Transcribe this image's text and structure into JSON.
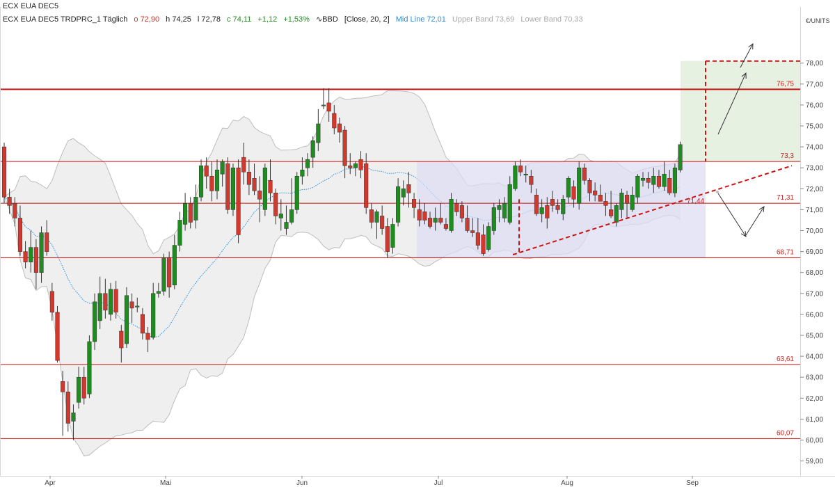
{
  "header": {
    "title": "ECX EUA DEC5",
    "symbol": "ECX EUA DEC5 TRDPRC_1 Täglich",
    "open": "o 72,90",
    "high": "h 74,25",
    "low": "l 72,78",
    "close": "c 74,11",
    "change": "+1,12",
    "change_pct": "+1,53%",
    "indicator": "BBD",
    "indicator_params": "[Close, 20, 2]",
    "mid_line": "Mid Line 72,01",
    "upper_band": "Upper Band 73,69",
    "lower_band": "Lower Band 70,33"
  },
  "colors": {
    "up": "#1e8c1e",
    "down": "#d03a2e",
    "level": "#cc1111",
    "mid_line": "#2a8fd8",
    "band_fill": "#efefef",
    "range_box": "#dcdcf4",
    "target_box": "#e3efdc"
  },
  "chart_data": {
    "type": "candlestick",
    "unit_label": "€/UNITS",
    "ylim": [
      58.6,
      78.6
    ],
    "y_ticks": [
      "59,00",
      "60,00",
      "61,00",
      "62,00",
      "63,00",
      "64,00",
      "65,00",
      "66,00",
      "67,00",
      "68,00",
      "69,00",
      "70,00",
      "71,00",
      "72,00",
      "73,00",
      "74,00",
      "75,00",
      "76,00",
      "77,00",
      "78,00"
    ],
    "x_ticks": [
      "Apr",
      "Mai",
      "Jun",
      "Jul",
      "Aug",
      "Sep"
    ],
    "levels": [
      {
        "value": 76.75,
        "label": "76,75"
      },
      {
        "value": 73.3,
        "label": "73,3"
      },
      {
        "value": 71.31,
        "label": "71,31"
      },
      {
        "value": 68.71,
        "label": "68,71"
      },
      {
        "value": 63.61,
        "label": "63,61"
      },
      {
        "value": 60.07,
        "label": "60,07"
      }
    ],
    "trendline_label": "71,44",
    "candles": [
      {
        "o": 74.0,
        "h": 74.2,
        "l": 71.3,
        "c": 71.6
      },
      {
        "o": 71.6,
        "h": 72.0,
        "l": 70.8,
        "c": 71.2
      },
      {
        "o": 71.3,
        "h": 71.6,
        "l": 70.2,
        "c": 70.6
      },
      {
        "o": 70.6,
        "h": 71.2,
        "l": 68.8,
        "c": 69.0
      },
      {
        "o": 69.0,
        "h": 69.5,
        "l": 68.2,
        "c": 68.5
      },
      {
        "o": 68.5,
        "h": 70.0,
        "l": 68.0,
        "c": 69.2
      },
      {
        "o": 69.2,
        "h": 69.6,
        "l": 67.2,
        "c": 68.0
      },
      {
        "o": 68.0,
        "h": 70.2,
        "l": 67.5,
        "c": 69.9
      },
      {
        "o": 69.9,
        "h": 70.5,
        "l": 68.8,
        "c": 69.0
      },
      {
        "o": 67.1,
        "h": 67.5,
        "l": 65.7,
        "c": 66.1
      },
      {
        "o": 66.1,
        "h": 66.4,
        "l": 63.7,
        "c": 63.8
      },
      {
        "o": 62.8,
        "h": 63.3,
        "l": 60.2,
        "c": 62.3
      },
      {
        "o": 62.3,
        "h": 62.8,
        "l": 60.4,
        "c": 60.8
      },
      {
        "o": 60.9,
        "h": 61.7,
        "l": 60.0,
        "c": 61.3
      },
      {
        "o": 61.8,
        "h": 63.5,
        "l": 61.5,
        "c": 63.0
      },
      {
        "o": 63.0,
        "h": 63.5,
        "l": 61.7,
        "c": 62.0
      },
      {
        "o": 62.2,
        "h": 65.0,
        "l": 62.0,
        "c": 64.7
      },
      {
        "o": 64.7,
        "h": 67.0,
        "l": 64.3,
        "c": 66.6
      },
      {
        "o": 65.7,
        "h": 67.8,
        "l": 65.3,
        "c": 67.0
      },
      {
        "o": 67.0,
        "h": 67.7,
        "l": 65.8,
        "c": 66.2
      },
      {
        "o": 66.0,
        "h": 67.5,
        "l": 65.7,
        "c": 67.2
      },
      {
        "o": 67.2,
        "h": 67.6,
        "l": 65.8,
        "c": 66.1
      },
      {
        "o": 65.2,
        "h": 65.5,
        "l": 63.7,
        "c": 64.4
      },
      {
        "o": 64.6,
        "h": 67.3,
        "l": 64.4,
        "c": 66.9
      },
      {
        "o": 66.6,
        "h": 67.0,
        "l": 65.6,
        "c": 66.3
      },
      {
        "o": 66.4,
        "h": 66.8,
        "l": 66.1,
        "c": 66.4
      },
      {
        "o": 66.0,
        "h": 66.3,
        "l": 64.8,
        "c": 65.1
      },
      {
        "o": 65.1,
        "h": 65.4,
        "l": 64.2,
        "c": 64.8
      },
      {
        "o": 64.9,
        "h": 67.5,
        "l": 64.8,
        "c": 67.0
      },
      {
        "o": 67.0,
        "h": 67.5,
        "l": 66.8,
        "c": 67.1
      },
      {
        "o": 67.1,
        "h": 68.9,
        "l": 66.9,
        "c": 68.7
      },
      {
        "o": 68.7,
        "h": 69.0,
        "l": 66.8,
        "c": 67.3
      },
      {
        "o": 67.4,
        "h": 69.8,
        "l": 67.2,
        "c": 69.3
      },
      {
        "o": 69.3,
        "h": 70.9,
        "l": 69.0,
        "c": 70.5
      },
      {
        "o": 70.3,
        "h": 71.8,
        "l": 70.0,
        "c": 71.3
      },
      {
        "o": 71.3,
        "h": 71.6,
        "l": 70.1,
        "c": 70.4
      },
      {
        "o": 70.5,
        "h": 72.2,
        "l": 70.1,
        "c": 71.6
      },
      {
        "o": 71.6,
        "h": 73.4,
        "l": 71.4,
        "c": 73.1
      },
      {
        "o": 73.1,
        "h": 73.5,
        "l": 72.0,
        "c": 72.6
      },
      {
        "o": 72.6,
        "h": 73.3,
        "l": 71.4,
        "c": 71.9
      },
      {
        "o": 71.9,
        "h": 73.4,
        "l": 71.5,
        "c": 72.9
      },
      {
        "o": 72.7,
        "h": 73.4,
        "l": 72.1,
        "c": 73.3
      },
      {
        "o": 73.2,
        "h": 73.5,
        "l": 70.8,
        "c": 71.0
      },
      {
        "o": 71.0,
        "h": 73.2,
        "l": 70.7,
        "c": 73.0
      },
      {
        "o": 73.0,
        "h": 73.4,
        "l": 69.4,
        "c": 69.8
      },
      {
        "o": 73.5,
        "h": 74.2,
        "l": 72.2,
        "c": 72.8
      },
      {
        "o": 72.8,
        "h": 73.4,
        "l": 71.7,
        "c": 72.2
      },
      {
        "o": 72.5,
        "h": 73.2,
        "l": 71.7,
        "c": 71.9
      },
      {
        "o": 71.9,
        "h": 72.6,
        "l": 70.4,
        "c": 71.5
      },
      {
        "o": 71.0,
        "h": 73.2,
        "l": 70.7,
        "c": 73.0
      },
      {
        "o": 72.4,
        "h": 73.4,
        "l": 71.4,
        "c": 71.8
      },
      {
        "o": 71.8,
        "h": 72.0,
        "l": 70.3,
        "c": 70.7
      },
      {
        "o": 70.6,
        "h": 71.5,
        "l": 70.0,
        "c": 70.8
      },
      {
        "o": 70.1,
        "h": 71.2,
        "l": 69.8,
        "c": 70.4
      },
      {
        "o": 70.4,
        "h": 72.5,
        "l": 70.3,
        "c": 71.0
      },
      {
        "o": 71.0,
        "h": 72.8,
        "l": 70.8,
        "c": 72.6
      },
      {
        "o": 72.6,
        "h": 73.5,
        "l": 72.2,
        "c": 72.9
      },
      {
        "o": 73.0,
        "h": 73.7,
        "l": 72.6,
        "c": 73.4
      },
      {
        "o": 73.5,
        "h": 74.5,
        "l": 73.0,
        "c": 74.3
      },
      {
        "o": 74.2,
        "h": 75.8,
        "l": 73.8,
        "c": 75.1
      },
      {
        "o": 76.0,
        "h": 76.8,
        "l": 75.8,
        "c": 76.0
      },
      {
        "o": 76.1,
        "h": 76.8,
        "l": 75.2,
        "c": 75.7
      },
      {
        "o": 75.6,
        "h": 76.0,
        "l": 74.6,
        "c": 74.9
      },
      {
        "o": 75.1,
        "h": 75.4,
        "l": 74.2,
        "c": 74.7
      },
      {
        "o": 74.8,
        "h": 75.0,
        "l": 72.5,
        "c": 73.1
      },
      {
        "o": 73.1,
        "h": 73.7,
        "l": 72.7,
        "c": 73.0
      },
      {
        "o": 73.0,
        "h": 73.3,
        "l": 72.6,
        "c": 73.2
      },
      {
        "o": 73.4,
        "h": 73.8,
        "l": 72.5,
        "c": 72.9
      },
      {
        "o": 73.2,
        "h": 73.7,
        "l": 70.8,
        "c": 71.1
      },
      {
        "o": 71.0,
        "h": 71.3,
        "l": 70.1,
        "c": 70.4
      },
      {
        "o": 70.4,
        "h": 71.0,
        "l": 69.6,
        "c": 70.9
      },
      {
        "o": 70.7,
        "h": 71.2,
        "l": 69.8,
        "c": 70.1
      },
      {
        "o": 70.2,
        "h": 70.6,
        "l": 68.7,
        "c": 69.0
      },
      {
        "o": 69.2,
        "h": 70.6,
        "l": 68.9,
        "c": 70.3
      },
      {
        "o": 70.4,
        "h": 72.5,
        "l": 70.2,
        "c": 72.1
      },
      {
        "o": 71.6,
        "h": 72.4,
        "l": 71.2,
        "c": 72.0
      },
      {
        "o": 72.2,
        "h": 72.8,
        "l": 71.1,
        "c": 71.8
      },
      {
        "o": 71.5,
        "h": 71.8,
        "l": 70.6,
        "c": 71.1
      },
      {
        "o": 71.0,
        "h": 71.5,
        "l": 70.2,
        "c": 70.5
      },
      {
        "o": 70.9,
        "h": 71.3,
        "l": 70.3,
        "c": 70.5
      },
      {
        "o": 70.6,
        "h": 70.9,
        "l": 70.1,
        "c": 70.2
      },
      {
        "o": 70.4,
        "h": 71.1,
        "l": 70.0,
        "c": 70.6
      },
      {
        "o": 70.6,
        "h": 71.3,
        "l": 70.3,
        "c": 70.4
      },
      {
        "o": 70.3,
        "h": 70.6,
        "l": 70.0,
        "c": 70.1
      },
      {
        "o": 70.0,
        "h": 71.8,
        "l": 69.9,
        "c": 71.5
      },
      {
        "o": 71.3,
        "h": 71.5,
        "l": 70.7,
        "c": 70.9
      },
      {
        "o": 71.2,
        "h": 71.4,
        "l": 70.4,
        "c": 70.6
      },
      {
        "o": 70.6,
        "h": 71.2,
        "l": 69.9,
        "c": 70.0
      },
      {
        "o": 70.0,
        "h": 70.6,
        "l": 69.7,
        "c": 69.9
      },
      {
        "o": 69.9,
        "h": 70.6,
        "l": 69.1,
        "c": 69.3
      },
      {
        "o": 69.8,
        "h": 70.3,
        "l": 68.8,
        "c": 68.9
      },
      {
        "o": 69.1,
        "h": 70.4,
        "l": 69.0,
        "c": 70.2
      },
      {
        "o": 70.0,
        "h": 71.3,
        "l": 69.8,
        "c": 71.1
      },
      {
        "o": 71.0,
        "h": 71.5,
        "l": 70.4,
        "c": 71.2
      },
      {
        "o": 70.6,
        "h": 71.6,
        "l": 70.4,
        "c": 71.3
      },
      {
        "o": 70.4,
        "h": 72.6,
        "l": 70.3,
        "c": 72.2
      },
      {
        "o": 72.0,
        "h": 73.3,
        "l": 71.9,
        "c": 73.1
      },
      {
        "o": 73.1,
        "h": 73.4,
        "l": 72.6,
        "c": 72.8
      },
      {
        "o": 72.7,
        "h": 73.1,
        "l": 72.3,
        "c": 72.7
      },
      {
        "o": 72.6,
        "h": 72.9,
        "l": 71.8,
        "c": 72.2
      },
      {
        "o": 71.7,
        "h": 72.0,
        "l": 70.7,
        "c": 70.8
      },
      {
        "o": 70.8,
        "h": 71.5,
        "l": 70.4,
        "c": 71.1
      },
      {
        "o": 71.2,
        "h": 71.6,
        "l": 70.1,
        "c": 70.6
      },
      {
        "o": 71.5,
        "h": 71.9,
        "l": 70.9,
        "c": 71.2
      },
      {
        "o": 71.2,
        "h": 71.5,
        "l": 70.8,
        "c": 71.0
      },
      {
        "o": 70.8,
        "h": 71.7,
        "l": 70.5,
        "c": 71.5
      },
      {
        "o": 71.6,
        "h": 72.6,
        "l": 71.3,
        "c": 72.5
      },
      {
        "o": 72.1,
        "h": 72.4,
        "l": 71.1,
        "c": 71.5
      },
      {
        "o": 71.3,
        "h": 73.3,
        "l": 71.0,
        "c": 73.0
      },
      {
        "o": 73.0,
        "h": 73.2,
        "l": 72.2,
        "c": 72.4
      },
      {
        "o": 72.4,
        "h": 72.5,
        "l": 71.4,
        "c": 71.8
      },
      {
        "o": 71.9,
        "h": 72.3,
        "l": 71.4,
        "c": 71.7
      },
      {
        "o": 71.7,
        "h": 72.2,
        "l": 71.4,
        "c": 71.4
      },
      {
        "o": 71.4,
        "h": 71.8,
        "l": 70.7,
        "c": 71.2
      },
      {
        "o": 71.0,
        "h": 71.9,
        "l": 70.6,
        "c": 70.7
      },
      {
        "o": 70.4,
        "h": 71.3,
        "l": 70.2,
        "c": 71.2
      },
      {
        "o": 71.0,
        "h": 72.0,
        "l": 70.6,
        "c": 71.8
      },
      {
        "o": 71.7,
        "h": 71.9,
        "l": 70.6,
        "c": 71.3
      },
      {
        "o": 71.0,
        "h": 72.1,
        "l": 70.9,
        "c": 71.7
      },
      {
        "o": 71.6,
        "h": 72.7,
        "l": 71.3,
        "c": 72.6
      },
      {
        "o": 72.4,
        "h": 72.8,
        "l": 72.1,
        "c": 72.5
      },
      {
        "o": 72.5,
        "h": 72.8,
        "l": 72.0,
        "c": 72.3
      },
      {
        "o": 72.2,
        "h": 73.0,
        "l": 71.8,
        "c": 72.6
      },
      {
        "o": 72.6,
        "h": 72.9,
        "l": 72.0,
        "c": 72.1
      },
      {
        "o": 72.1,
        "h": 73.3,
        "l": 71.9,
        "c": 72.7
      },
      {
        "o": 72.5,
        "h": 72.9,
        "l": 71.7,
        "c": 71.8
      },
      {
        "o": 71.8,
        "h": 73.2,
        "l": 71.6,
        "c": 73.0
      },
      {
        "o": 72.9,
        "h": 74.25,
        "l": 72.78,
        "c": 74.11
      }
    ]
  }
}
